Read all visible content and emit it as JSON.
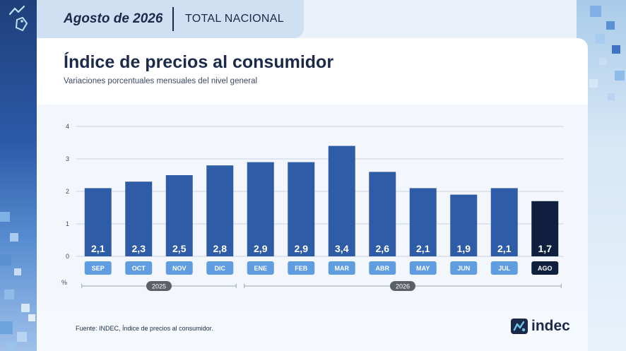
{
  "header": {
    "date": "Agosto de 2026",
    "scope": "TOTAL NACIONAL"
  },
  "title": "Índice de precios al consumidor",
  "subtitle": "Variaciones porcentuales mensuales del nivel general",
  "source": "Fuente: INDEC, Índice de precios al consumidor.",
  "logo": {
    "text": "indec",
    "icon": "indec-logo-icon"
  },
  "colors": {
    "bar": "#2f5ca7",
    "bar_highlight": "#0f1f3d",
    "month_pill": "#5f9de0",
    "month_pill_highlight": "#0f1f3d",
    "year_pill": "#5a5f68",
    "text_dark": "#1b2a4a"
  },
  "chart_data": {
    "type": "bar",
    "categories": [
      "SEP",
      "OCT",
      "NOV",
      "DIC",
      "ENE",
      "FEB",
      "MAR",
      "ABR",
      "MAY",
      "JUN",
      "JUL",
      "AGO"
    ],
    "value_labels": [
      "2,1",
      "2,3",
      "2,5",
      "2,8",
      "2,9",
      "2,9",
      "3,4",
      "2,6",
      "2,1",
      "1,9",
      "2,1",
      "1,7"
    ],
    "values": [
      2.1,
      2.3,
      2.5,
      2.8,
      2.9,
      2.9,
      3.4,
      2.6,
      2.1,
      1.9,
      2.1,
      1.7
    ],
    "highlight_index": 11,
    "ylim": [
      0,
      4
    ],
    "yticks": [
      "0",
      "1",
      "2",
      "3",
      "4"
    ],
    "ylabel": "%",
    "grid": true,
    "year_groups": [
      {
        "label": "2025",
        "start": 0,
        "end": 3
      },
      {
        "label": "2026",
        "start": 4,
        "end": 11
      }
    ]
  }
}
